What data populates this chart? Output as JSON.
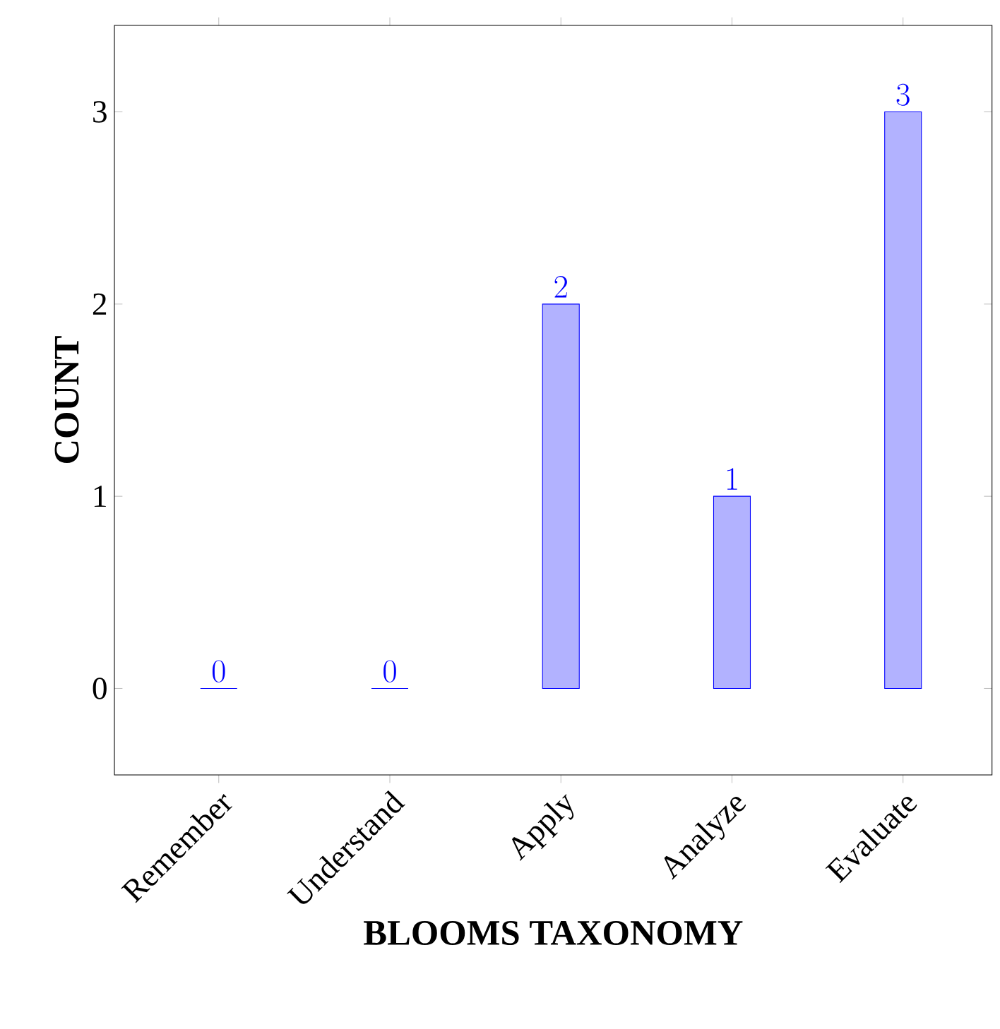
{
  "chart_data": {
    "type": "bar",
    "xlabel": "BLOOMS TAXONOMY",
    "ylabel": "COUNT",
    "categories": [
      "Remember",
      "Understand",
      "Apply",
      "Analyze",
      "Evaluate"
    ],
    "values": [
      0,
      0,
      2,
      1,
      3
    ],
    "color": "#0000ff",
    "ylim": [
      -0.45,
      3.45
    ],
    "yticks": [
      0,
      1,
      2,
      3
    ],
    "data_labels": true
  }
}
